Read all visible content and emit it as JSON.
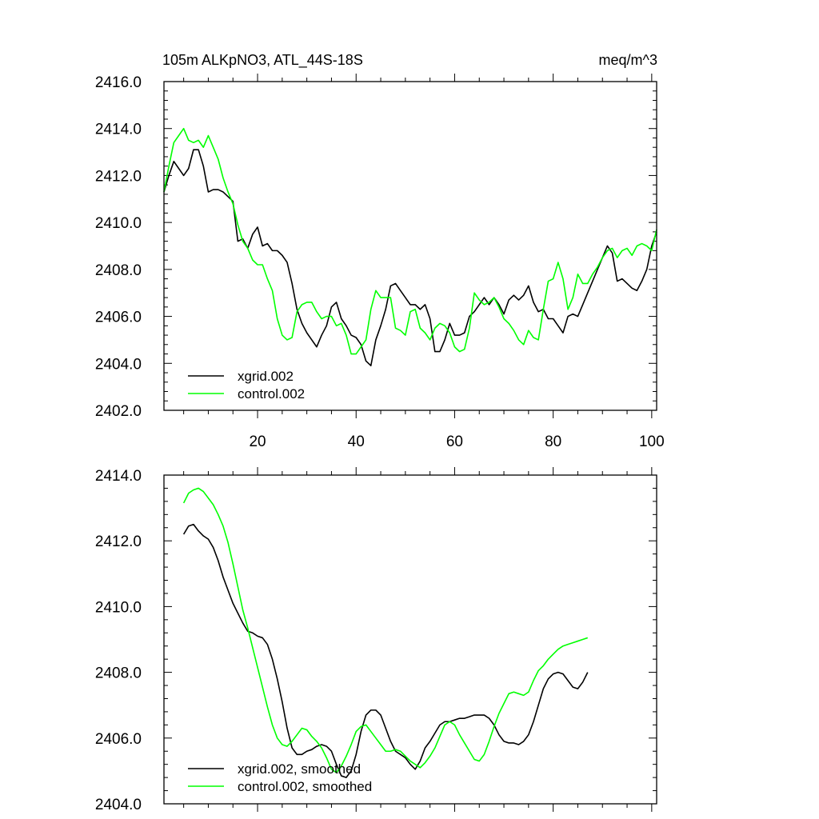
{
  "chart_data": [
    {
      "type": "line",
      "title": "105m ALKpNO3, ATL_44S-18S",
      "units": "meq/m^3",
      "xlabel": "",
      "ylabel": "",
      "xlim": [
        1,
        101
      ],
      "ylim": [
        2402.0,
        2416.0
      ],
      "y_ticks": [
        "2402.0",
        "2404.0",
        "2406.0",
        "2408.0",
        "2410.0",
        "2412.0",
        "2414.0",
        "2416.0"
      ],
      "x_ticks": [
        "20",
        "40",
        "60",
        "80",
        "100"
      ],
      "legend_position": "bottom-left",
      "series": [
        {
          "name": "xgrid.002",
          "color": "#000000",
          "values": [
            2411.3,
            2412.0,
            2412.6,
            2412.3,
            2412.0,
            2412.3,
            2413.1,
            2413.1,
            2412.4,
            2411.3,
            2411.4,
            2411.4,
            2411.3,
            2411.1,
            2410.9,
            2409.2,
            2409.3,
            2408.9,
            2409.5,
            2409.8,
            2409.0,
            2409.1,
            2408.8,
            2408.8,
            2408.6,
            2408.3,
            2407.4,
            2406.3,
            2405.7,
            2405.3,
            2405.0,
            2404.7,
            2405.2,
            2405.6,
            2406.4,
            2406.6,
            2405.9,
            2405.6,
            2405.2,
            2405.1,
            2404.8,
            2404.1,
            2403.9,
            2405.0,
            2405.6,
            2406.3,
            2407.3,
            2407.4,
            2407.1,
            2406.8,
            2406.5,
            2406.5,
            2406.3,
            2406.5,
            2405.9,
            2404.5,
            2404.5,
            2405.0,
            2405.7,
            2405.2,
            2405.2,
            2405.3,
            2406.0,
            2406.2,
            2406.5,
            2406.8,
            2406.5,
            2406.8,
            2406.5,
            2406.1,
            2406.7,
            2406.9,
            2406.7,
            2406.9,
            2407.3,
            2406.6,
            2406.2,
            2406.3,
            2405.9,
            2405.9,
            2405.6,
            2405.3,
            2406.0,
            2406.1,
            2406.0,
            2406.5,
            2407.0,
            2407.5,
            2408.0,
            2408.5,
            2409.0,
            2408.7,
            2407.5,
            2407.6,
            2407.4,
            2407.2,
            2407.1,
            2407.5,
            2408.0,
            2409.0,
            2409.6
          ]
        },
        {
          "name": "control.002",
          "color": "#00ff00",
          "values": [
            2411.3,
            2412.4,
            2413.4,
            2413.7,
            2414.0,
            2413.5,
            2413.4,
            2413.5,
            2413.2,
            2413.7,
            2413.2,
            2412.7,
            2411.9,
            2411.3,
            2410.8,
            2409.9,
            2409.2,
            2408.9,
            2408.4,
            2408.2,
            2408.2,
            2407.6,
            2407.1,
            2405.9,
            2405.2,
            2405.0,
            2405.1,
            2406.2,
            2406.5,
            2406.6,
            2406.6,
            2406.2,
            2405.9,
            2406.0,
            2406.0,
            2405.6,
            2405.7,
            2405.2,
            2404.4,
            2404.4,
            2404.7,
            2405.0,
            2406.3,
            2407.1,
            2406.8,
            2406.8,
            2406.8,
            2405.5,
            2405.4,
            2405.2,
            2406.2,
            2406.3,
            2405.5,
            2405.3,
            2405.0,
            2405.5,
            2405.7,
            2405.6,
            2405.3,
            2404.7,
            2404.5,
            2404.6,
            2405.5,
            2407.0,
            2406.7,
            2406.5,
            2406.6,
            2406.8,
            2406.4,
            2405.9,
            2405.7,
            2405.4,
            2405.0,
            2404.8,
            2405.4,
            2405.1,
            2405.0,
            2406.3,
            2407.5,
            2407.6,
            2408.3,
            2407.6,
            2406.3,
            2406.8,
            2407.8,
            2407.4,
            2407.4,
            2407.8,
            2408.1,
            2408.5,
            2408.8,
            2408.9,
            2408.5,
            2408.8,
            2408.9,
            2408.6,
            2409.0,
            2409.1,
            2409.0,
            2408.8,
            2409.7
          ]
        }
      ]
    },
    {
      "type": "line",
      "title": "",
      "xlabel": "",
      "ylabel": "",
      "xlim": [
        1,
        101
      ],
      "ylim": [
        2404.0,
        2414.0
      ],
      "y_ticks": [
        "2404.0",
        "2406.0",
        "2408.0",
        "2410.0",
        "2412.0",
        "2414.0"
      ],
      "x_ticks": [],
      "legend_position": "bottom-left",
      "series": [
        {
          "name": "xgrid.002, smoothed",
          "color": "#000000",
          "x_start": 5,
          "values": [
            2412.2,
            2412.45,
            2412.5,
            2412.3,
            2412.15,
            2412.05,
            2411.8,
            2411.4,
            2410.9,
            2410.5,
            2410.1,
            2409.8,
            2409.5,
            2409.25,
            2409.2,
            2409.1,
            2409.05,
            2408.85,
            2408.4,
            2407.8,
            2407.1,
            2406.3,
            2405.7,
            2405.5,
            2405.5,
            2405.6,
            2405.65,
            2405.75,
            2405.8,
            2405.75,
            2405.6,
            2405.2,
            2404.85,
            2404.8,
            2405.0,
            2405.5,
            2406.2,
            2406.7,
            2406.85,
            2406.85,
            2406.7,
            2406.3,
            2405.9,
            2405.6,
            2405.5,
            2405.4,
            2405.2,
            2405.05,
            2405.3,
            2405.7,
            2405.9,
            2406.15,
            2406.4,
            2406.5,
            2406.5,
            2406.55,
            2406.6,
            2406.6,
            2406.65,
            2406.7,
            2406.7,
            2406.7,
            2406.6,
            2406.4,
            2406.1,
            2405.9,
            2405.85,
            2405.85,
            2405.8,
            2405.9,
            2406.1,
            2406.5,
            2407.0,
            2407.5,
            2407.8,
            2407.95,
            2408.0,
            2407.95,
            2407.75,
            2407.55,
            2407.5,
            2407.7,
            2408.0
          ]
        },
        {
          "name": "control.002, smoothed",
          "color": "#00ff00",
          "x_start": 5,
          "values": [
            2413.15,
            2413.45,
            2413.55,
            2413.6,
            2413.5,
            2413.3,
            2413.1,
            2412.8,
            2412.45,
            2411.95,
            2411.3,
            2410.6,
            2409.9,
            2409.35,
            2408.75,
            2408.15,
            2407.55,
            2406.95,
            2406.4,
            2406.0,
            2405.8,
            2405.75,
            2405.9,
            2406.1,
            2406.3,
            2406.25,
            2406.05,
            2405.9,
            2405.7,
            2405.4,
            2405.05,
            2404.95,
            2405.15,
            2405.45,
            2405.8,
            2406.2,
            2406.35,
            2406.4,
            2406.2,
            2406.0,
            2405.8,
            2405.6,
            2405.6,
            2405.65,
            2405.6,
            2405.45,
            2405.3,
            2405.2,
            2405.1,
            2405.25,
            2405.45,
            2405.7,
            2406.05,
            2406.4,
            2406.5,
            2406.4,
            2406.1,
            2405.85,
            2405.6,
            2405.35,
            2405.3,
            2405.5,
            2405.9,
            2406.35,
            2406.75,
            2407.05,
            2407.35,
            2407.4,
            2407.35,
            2407.3,
            2407.4,
            2407.75,
            2408.05,
            2408.2,
            2408.4,
            2408.55,
            2408.7,
            2408.8,
            2408.85,
            2408.9,
            2408.95,
            2409.0,
            2409.05
          ]
        }
      ]
    }
  ]
}
